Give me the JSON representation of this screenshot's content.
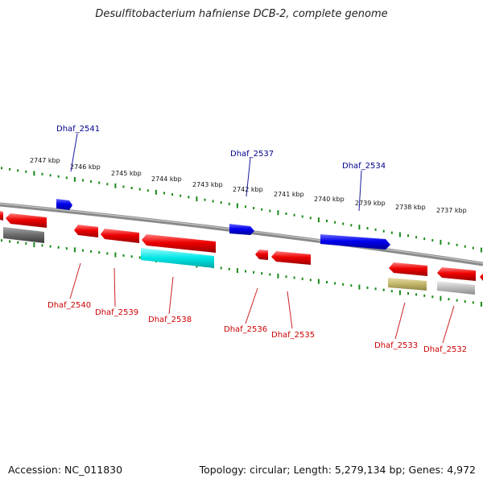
{
  "title": "Desulfitobacterium hafniense DCB-2, complete genome",
  "footer": {
    "accession": "Accession: NC_011830",
    "topology": "Topology: circular; Length: 5,279,134 bp; Genes: 4,972"
  },
  "colors": {
    "backbone": "#8a8a8a",
    "ticks": "#1a8a1a",
    "forward_label": "#00008b",
    "reverse_label": "#cc0000",
    "forward_gene": "#0000ee",
    "reverse_gene": "#ee0000",
    "cyan_gene": "#00e6e6",
    "olive_gene": "#c2b56a",
    "dark_gene": "#6a6a6a",
    "light_gene": "#bdbdbd"
  },
  "kbp_labels": [
    "2747 kbp",
    "2746 kbp",
    "2745 kbp",
    "2744 kbp",
    "2743 kbp",
    "2742 kbp",
    "2741 kbp",
    "2740 kbp",
    "2739 kbp",
    "2738 kbp",
    "2737 kbp"
  ],
  "forward_genes": [
    "Dhaf_2541",
    "Dhaf_2537",
    "Dhaf_2534"
  ],
  "reverse_genes": [
    "Dhaf_2540",
    "Dhaf_2539",
    "Dhaf_2538",
    "Dhaf_2536",
    "Dhaf_2535",
    "Dhaf_2533",
    "Dhaf_2532"
  ]
}
